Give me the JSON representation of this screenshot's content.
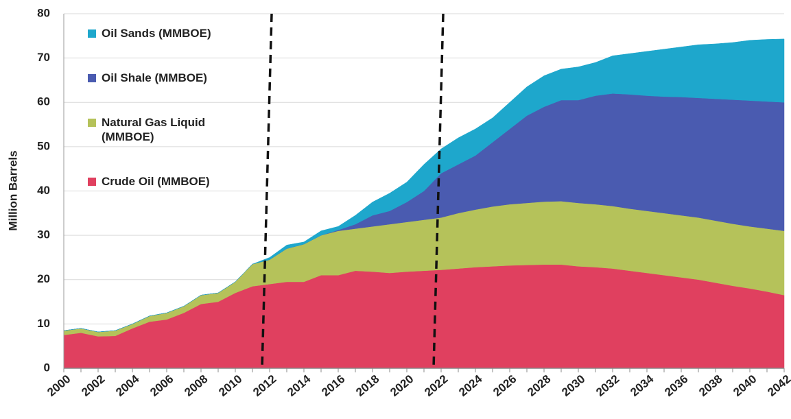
{
  "chart_data": {
    "type": "stacked-area",
    "y_label": "Million Barrels",
    "x": [
      2000,
      2001,
      2002,
      2003,
      2004,
      2005,
      2006,
      2007,
      2008,
      2009,
      2010,
      2011,
      2012,
      2013,
      2014,
      2015,
      2016,
      2017,
      2018,
      2019,
      2020,
      2021,
      2022,
      2023,
      2024,
      2025,
      2026,
      2027,
      2028,
      2029,
      2030,
      2031,
      2032,
      2033,
      2034,
      2035,
      2036,
      2037,
      2038,
      2039,
      2040,
      2041,
      2042
    ],
    "series": [
      {
        "name": "Crude Oil (MMBOE)",
        "color": "#e0405f",
        "values": [
          7.5,
          8,
          7.2,
          7.3,
          9,
          10.5,
          11,
          12.5,
          14.5,
          15,
          17,
          18.5,
          19,
          19.5,
          19.5,
          21,
          21,
          22,
          21.8,
          21.5,
          21.8,
          22,
          22.2,
          22.5,
          22.8,
          23,
          23.2,
          23.3,
          23.4,
          23.4,
          23,
          22.8,
          22.5,
          22,
          21.5,
          21,
          20.5,
          20,
          19.3,
          18.6,
          18,
          17.3,
          16.5
        ]
      },
      {
        "name": "Natural Gas Liquid (MMBOE)",
        "color": "#b5c25a",
        "values": [
          1,
          1,
          1,
          1.2,
          1,
          1.3,
          1.5,
          1.5,
          2,
          2,
          2.5,
          5,
          5.5,
          7.5,
          8.5,
          9,
          10,
          9.5,
          10.2,
          11,
          11.2,
          11.5,
          11.8,
          12.5,
          13,
          13.5,
          13.8,
          14,
          14.2,
          14.3,
          14.3,
          14.2,
          14.1,
          14,
          14,
          14,
          14,
          14,
          14,
          14,
          14,
          14.2,
          14.5
        ]
      },
      {
        "name": "Oil Shale (MMBOE)",
        "color": "#4a5bb0",
        "values": [
          0,
          0,
          0,
          0,
          0,
          0,
          0,
          0,
          0,
          0,
          0,
          0,
          0,
          0,
          0,
          0,
          0.2,
          1,
          2.5,
          3,
          4.5,
          6.5,
          10,
          11,
          12.2,
          14.5,
          17,
          19.7,
          21.4,
          22.8,
          23.2,
          24.5,
          25.4,
          25.8,
          26,
          26.3,
          26.7,
          27,
          27.5,
          28,
          28.4,
          28.7,
          29
        ]
      },
      {
        "name": "Oil Sands (MMBOE)",
        "color": "#1ea7cc",
        "values": [
          0,
          0,
          0,
          0,
          0,
          0,
          0,
          0,
          0,
          0,
          0,
          0,
          0.5,
          0.8,
          0.5,
          1,
          0.8,
          2,
          3,
          4,
          4.5,
          6,
          5.5,
          6,
          6,
          5.5,
          6,
          6.5,
          7,
          7,
          7.5,
          7.5,
          8.5,
          9.2,
          10,
          10.7,
          11.3,
          12,
          12.4,
          12.9,
          13.6,
          14,
          14.3
        ]
      }
    ],
    "xlim": [
      2000,
      2042
    ],
    "xticks": [
      2000,
      2002,
      2004,
      2006,
      2008,
      2010,
      2012,
      2014,
      2016,
      2018,
      2020,
      2022,
      2024,
      2026,
      2028,
      2030,
      2032,
      2034,
      2036,
      2038,
      2040,
      2042
    ],
    "ylim": [
      0,
      80
    ],
    "yticks": [
      0,
      10,
      20,
      30,
      40,
      50,
      60,
      70,
      80
    ],
    "grid": true,
    "vlines": [
      2012,
      2022
    ],
    "legend": "upper left"
  }
}
